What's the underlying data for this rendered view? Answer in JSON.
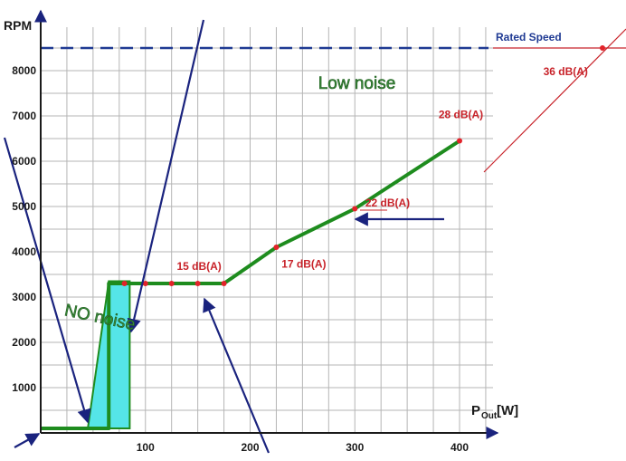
{
  "chart_data": {
    "type": "line",
    "ylabel": "RPM",
    "xlabel": "P",
    "xlabel_sub": "Out",
    "xlabel_unit": "[W]",
    "xlim": [
      0,
      420
    ],
    "ylim": [
      0,
      9000
    ],
    "x_ticks": [
      100,
      200,
      300,
      400
    ],
    "y_ticks": [
      1000,
      2000,
      3000,
      4000,
      5000,
      6000,
      7000,
      8000
    ],
    "grid": true,
    "series": [
      {
        "color": "#1e8c1e",
        "points": [
          [
            0,
            100
          ],
          [
            65,
            100
          ],
          [
            65,
            3300
          ],
          [
            175,
            3300
          ],
          [
            225,
            4100
          ],
          [
            300,
            4950
          ],
          [
            400,
            6450
          ]
        ]
      }
    ],
    "markers": [
      [
        80,
        3300
      ],
      [
        100,
        3300
      ],
      [
        125,
        3300
      ],
      [
        150,
        3300
      ],
      [
        175,
        3300
      ],
      [
        225,
        4100
      ],
      [
        300,
        4950
      ],
      [
        400,
        6450
      ]
    ],
    "band": {
      "color": "#55e5e8",
      "polygon": [
        [
          65,
          3350
        ],
        [
          85,
          3350
        ],
        [
          85,
          100
        ],
        [
          45,
          100
        ]
      ]
    },
    "rated_speed": {
      "label": "Rated Speed",
      "rpm": 8500,
      "color": "#1f3a93"
    },
    "zone_labels": [
      {
        "text": "Low noise",
        "x": 265,
        "y": 7600
      },
      {
        "text": "NO noise",
        "x": 22,
        "y": 2600
      }
    ],
    "annotations": [
      {
        "text": "15 dB(A)",
        "x": 130,
        "y": 3600,
        "color": "#c8232a"
      },
      {
        "text": "17 dB(A)",
        "x": 230,
        "y": 3650,
        "color": "#c8232a"
      },
      {
        "text": "22 dB(A)",
        "x": 310,
        "y": 5000,
        "color": "#c8232a"
      },
      {
        "text": "28 dB(A)",
        "x": 380,
        "y": 6950,
        "color": "#c8232a"
      },
      {
        "text": "36 dB(A)",
        "x": 480,
        "y": 7900,
        "color": "#c8232a"
      }
    ],
    "colors": {
      "curve": "#1e8c1e",
      "marker": "#e2232a",
      "arrow": "#1a237e",
      "dashed_line": "#1f3a93",
      "red_line": "#c8232a",
      "grid": "#b5b5b5"
    }
  }
}
